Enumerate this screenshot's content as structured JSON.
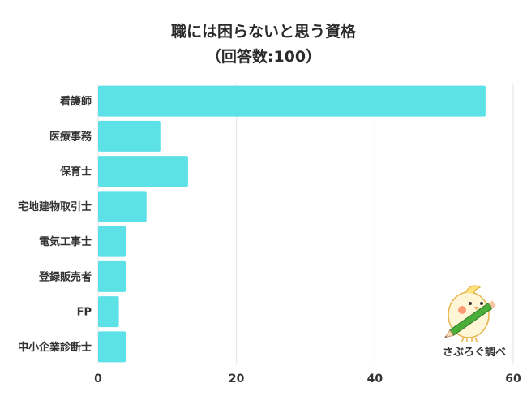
{
  "chart_data": {
    "type": "bar",
    "orientation": "horizontal",
    "title": "職には困らないと思う資格",
    "subtitle": "（回答数:100）",
    "categories": [
      "看護師",
      "医療事務",
      "保育士",
      "宅地建物取引士",
      "電気工事士",
      "登録販売者",
      "FP",
      "中小企業診断士"
    ],
    "values": [
      56,
      9,
      13,
      7,
      4,
      4,
      3,
      4
    ],
    "xlim": [
      0,
      60
    ],
    "xticks": [
      0,
      20,
      40,
      60
    ],
    "grid": true,
    "bar_color": "#5ce1e6",
    "grid_color": "#e3e3e3"
  },
  "credit": {
    "label": "さぶろぐ調べ",
    "icon": "bird-with-pencil-mascot"
  }
}
